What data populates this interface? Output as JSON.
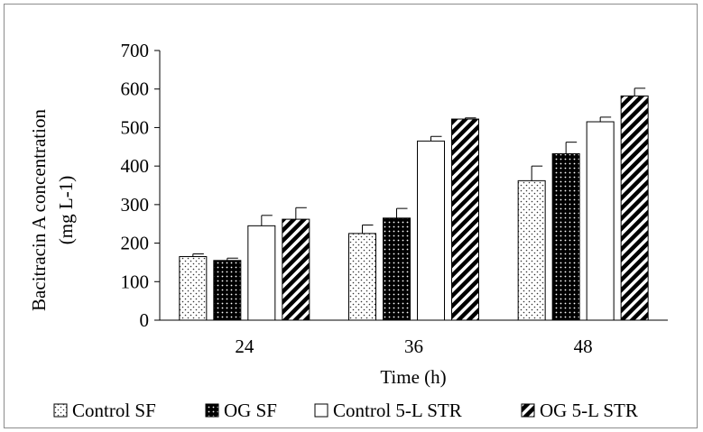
{
  "chart_data": {
    "type": "bar",
    "title": "",
    "xlabel": "Time (h)",
    "ylabel_line1": "Bacitracin  A concentration",
    "ylabel_line2": "(mg L-1)",
    "ylim": [
      0,
      700
    ],
    "yticks": [
      0,
      100,
      200,
      300,
      400,
      500,
      600,
      700
    ],
    "categories": [
      "24",
      "36",
      "48"
    ],
    "grid": false,
    "legend_position": "bottom",
    "series": [
      {
        "name": "Control SF",
        "pattern": "dots-light",
        "values": [
          165,
          225,
          362
        ],
        "errors": [
          7,
          22,
          38
        ]
      },
      {
        "name": "OG SF",
        "pattern": "dots-dark",
        "values": [
          155,
          265,
          432
        ],
        "errors": [
          6,
          25,
          30
        ]
      },
      {
        "name": "Control 5-L  STR",
        "pattern": "none",
        "values": [
          245,
          465,
          515
        ],
        "errors": [
          27,
          12,
          12
        ]
      },
      {
        "name": "OG 5-L  STR",
        "pattern": "diagonal",
        "values": [
          262,
          522,
          582
        ],
        "errors": [
          30,
          3,
          20
        ]
      }
    ]
  }
}
